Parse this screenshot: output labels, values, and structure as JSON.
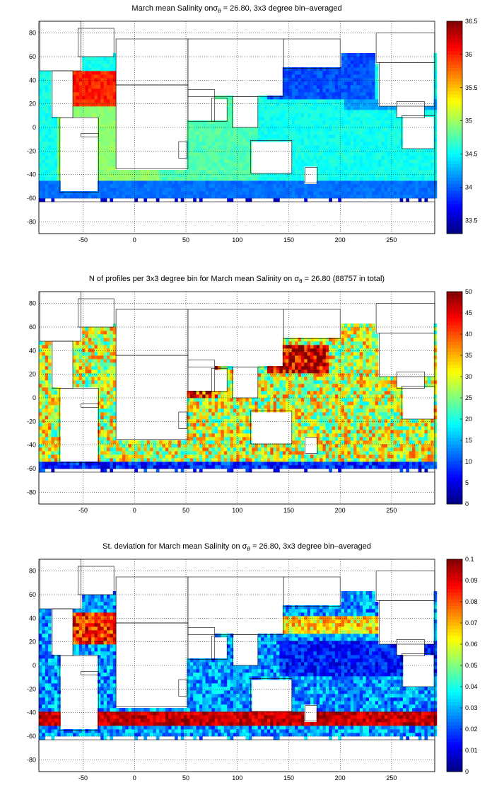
{
  "colormap": "jet",
  "land_color": "#ffffff",
  "chart_data": [
    {
      "type": "heatmap",
      "title": {
        "before": "March mean Salinity on",
        "sigma": "σ",
        "sigma_sub": "θ",
        "after": " = 26.80, 3x3 degree bin–averaged"
      },
      "xlabel": "",
      "ylabel": "",
      "xlim": [
        -93,
        292
      ],
      "ylim": [
        -90,
        90
      ],
      "xticks": [
        -50,
        0,
        50,
        100,
        150,
        200,
        250
      ],
      "yticks": [
        80,
        60,
        40,
        20,
        0,
        -20,
        -40,
        -60,
        -80
      ],
      "grid": true,
      "colorbar": {
        "min": 33.3,
        "max": 36.5,
        "ticks": [
          33.5,
          34,
          34.5,
          35,
          35.5,
          36,
          36.5
        ],
        "tick_labels": [
          "33.5",
          "34",
          "34.5",
          "35",
          "35.5",
          "36",
          "36.5"
        ]
      },
      "field": "salinity"
    },
    {
      "type": "heatmap",
      "title": {
        "before": "N of profiles per 3x3 degree bin for March mean Salinity on ",
        "sigma": "σ",
        "sigma_sub": "θ",
        "after": " = 26.80 (88757 in total)"
      },
      "xlabel": "",
      "ylabel": "",
      "xlim": [
        -93,
        292
      ],
      "ylim": [
        -90,
        90
      ],
      "xticks": [
        -50,
        0,
        50,
        100,
        150,
        200,
        250
      ],
      "yticks": [
        80,
        60,
        40,
        20,
        0,
        -20,
        -40,
        -60,
        -80
      ],
      "grid": true,
      "colorbar": {
        "min": 0,
        "max": 50,
        "ticks": [
          0,
          5,
          10,
          15,
          20,
          25,
          30,
          35,
          40,
          45,
          50
        ],
        "tick_labels": [
          "0",
          "5",
          "10",
          "15",
          "20",
          "25",
          "30",
          "35",
          "40",
          "45",
          "50"
        ]
      },
      "total_profiles": 88757,
      "field": "count"
    },
    {
      "type": "heatmap",
      "title": {
        "before": "St. deviation for March mean Salinity on ",
        "sigma": "σ",
        "sigma_sub": "θ",
        "after": " = 26.80, 3x3 degree bin–averaged"
      },
      "xlabel": "",
      "ylabel": "",
      "xlim": [
        -93,
        292
      ],
      "ylim": [
        -90,
        90
      ],
      "xticks": [
        -50,
        0,
        50,
        100,
        150,
        200,
        250
      ],
      "yticks": [
        80,
        60,
        40,
        20,
        0,
        -20,
        -40,
        -60,
        -80
      ],
      "grid": true,
      "colorbar": {
        "min": 0,
        "max": 0.1,
        "ticks": [
          0,
          0.01,
          0.02,
          0.03,
          0.04,
          0.05,
          0.06,
          0.07,
          0.08,
          0.09,
          0.1
        ],
        "tick_labels": [
          "0",
          "0.01",
          "0.02",
          "0.03",
          "0.04",
          "0.05",
          "0.06",
          "0.07",
          "0.08",
          "0.09",
          "0.1"
        ]
      },
      "field": "stdev"
    }
  ]
}
